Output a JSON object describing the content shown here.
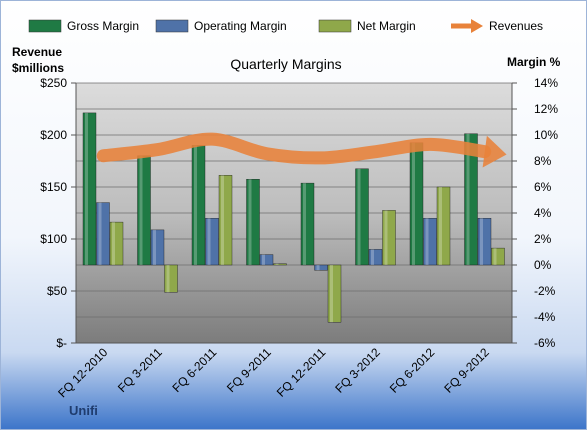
{
  "chart_data": {
    "type": "bar",
    "title": "Quarterly Margins",
    "brand": "Unifi",
    "categories": [
      "FQ 12-2010",
      "FQ 3-2011",
      "FQ 6-2011",
      "FQ 9-2011",
      "FQ 12-2011",
      "FQ 3-2012",
      "FQ 6-2012",
      "FQ 9-2012"
    ],
    "series": [
      {
        "name": "Gross Margin",
        "axis": "right",
        "color": "#1f7a44",
        "values": [
          11.7,
          8.4,
          9.2,
          6.6,
          6.3,
          7.4,
          9.4,
          10.1
        ]
      },
      {
        "name": "Operating Margin",
        "axis": "right",
        "color": "#4f72a8",
        "values": [
          4.8,
          2.7,
          3.6,
          0.8,
          -0.4,
          1.2,
          3.6,
          3.6
        ]
      },
      {
        "name": "Net Margin",
        "axis": "right",
        "color": "#8fa84a",
        "values": [
          3.3,
          -2.1,
          6.9,
          0.1,
          -4.4,
          4.2,
          6.0,
          1.3
        ]
      },
      {
        "name": "Revenues",
        "axis": "left",
        "type": "line",
        "color": "#e8823a",
        "values": [
          180,
          186,
          196,
          182,
          178,
          184,
          191,
          184
        ]
      }
    ],
    "left_axis": {
      "label_line1": "Revenue",
      "label_line2": "$millions",
      "ylim": [
        0,
        250
      ],
      "ticks": [
        "$-",
        "$50",
        "$100",
        "$150",
        "$200",
        "$250"
      ]
    },
    "right_axis": {
      "label": "Margin %",
      "ylim": [
        -6,
        14
      ],
      "ticks": [
        "-6%",
        "-4%",
        "-2%",
        "0%",
        "2%",
        "4%",
        "6%",
        "8%",
        "10%",
        "12%",
        "14%"
      ]
    },
    "legend_position": "top",
    "grid": true
  }
}
